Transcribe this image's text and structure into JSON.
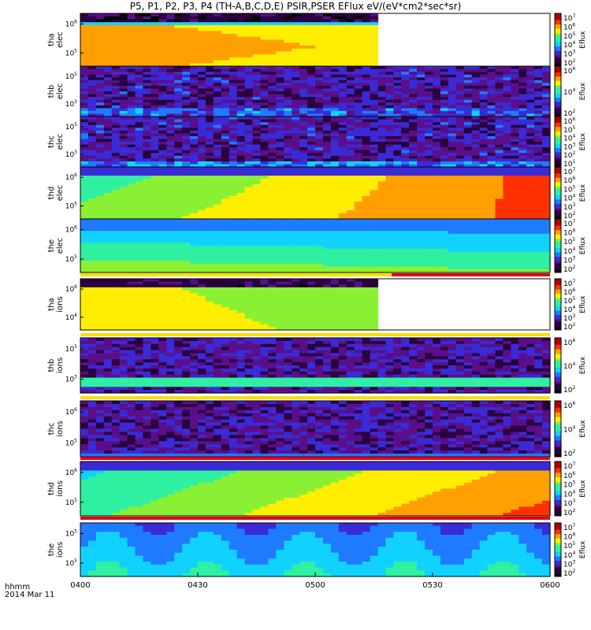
{
  "title": "P5, P1, P2, P3, P4 (TH-A,B,C,D,E) PSIR,PSER EFlux eV/(eV*cm2*sec*sr)",
  "footer": {
    "time_label": "hhmm",
    "date_label": "2014 Mar 11"
  },
  "colors": {
    "colormap": [
      "#000000",
      "#2b0040",
      "#5a0f8a",
      "#3a2bd6",
      "#1f7bff",
      "#11d2ff",
      "#2ff0a0",
      "#8af033",
      "#ffee00",
      "#ffa000",
      "#ff3000",
      "#b00000"
    ],
    "bar_yellow": "#ffdd00",
    "bar_red": "#e00010"
  },
  "chart_data": {
    "type": "heatmap",
    "xaxis": {
      "ticks": [
        "0400",
        "0430",
        "0500",
        "0530",
        "0600"
      ],
      "xlim": [
        "0400",
        "0600"
      ]
    },
    "panels": [
      {
        "id": "tha-elec",
        "ylabel": "tha\nelec",
        "yticks": [
          "10^6",
          "10^5"
        ],
        "cbar_ticks": [
          "10^7",
          "10^6",
          "10^5",
          "10^4",
          "10^3",
          "10^2"
        ],
        "cbar_label": "Eflux",
        "levels": [
          [
            1,
            2,
            3,
            4,
            5,
            6,
            7,
            8,
            9,
            10,
            11,
            12
          ],
          [
            6,
            6,
            6,
            6,
            6,
            6,
            6,
            6,
            6,
            6,
            6,
            6
          ]
        ],
        "missing_after": "0525"
      },
      {
        "id": "thb-elec",
        "ylabel": "thb\nelec",
        "yticks": [
          "10^5",
          "10^3"
        ],
        "cbar_ticks": [
          "10^6",
          "10^4",
          "10^2"
        ],
        "cbar_label": "Eflux"
      },
      {
        "id": "thc-elec",
        "ylabel": "thc\nelec",
        "yticks": [
          "10^5",
          "10^3"
        ],
        "cbar_ticks": [
          "10^6",
          "10^5",
          "10^4",
          "10^3",
          "10^2",
          "10^1"
        ],
        "cbar_label": "Eflux"
      },
      {
        "id": "thd-elec",
        "ylabel": "thd\nelec",
        "yticks": [
          "10^6",
          "10^5"
        ],
        "cbar_ticks": [
          "10^7",
          "10^6",
          "10^5",
          "10^4",
          "10^3",
          "10^2"
        ],
        "cbar_label": "Eflux"
      },
      {
        "id": "the-elec",
        "ylabel": "the\nelec",
        "yticks": [
          "10^6",
          "10^5"
        ],
        "cbar_ticks": [
          "10^7",
          "10^6",
          "10^5",
          "10^4",
          "10^3",
          "10^2"
        ],
        "cbar_label": "Eflux"
      },
      {
        "id": "tha-ions",
        "ylabel": "tha\nions",
        "yticks": [
          "10^6",
          "10^4"
        ],
        "cbar_ticks": [
          "10^7",
          "10^6",
          "10^5",
          "10^4",
          "10^3",
          "10^2"
        ],
        "cbar_label": "Eflux",
        "missing_after": "0525"
      },
      {
        "id": "thb-ions",
        "ylabel": "thb\nions",
        "yticks": [
          "10^5",
          "10^3"
        ],
        "cbar_ticks": [
          "10^6",
          "10^4",
          "10^2"
        ],
        "cbar_label": "Eflux"
      },
      {
        "id": "thc-ions",
        "ylabel": "thc\nions",
        "yticks": [
          "10^6",
          "10^5"
        ],
        "cbar_ticks": [
          "10^6",
          "10^4",
          "10^2"
        ],
        "cbar_label": "Eflux"
      },
      {
        "id": "thd-ions",
        "ylabel": "thd\nions",
        "yticks": [
          "10^6",
          "10^5"
        ],
        "cbar_ticks": [
          "10^7",
          "10^6",
          "10^5",
          "10^4",
          "10^3",
          "10^2"
        ],
        "cbar_label": "Eflux"
      },
      {
        "id": "the-ions",
        "ylabel": "the\nions",
        "yticks": [
          "10^5",
          "10^5"
        ],
        "cbar_ticks": [
          "10^7",
          "10^6",
          "10^5",
          "10^4",
          "10^3",
          "10^2"
        ],
        "cbar_label": "Eflux"
      }
    ]
  }
}
